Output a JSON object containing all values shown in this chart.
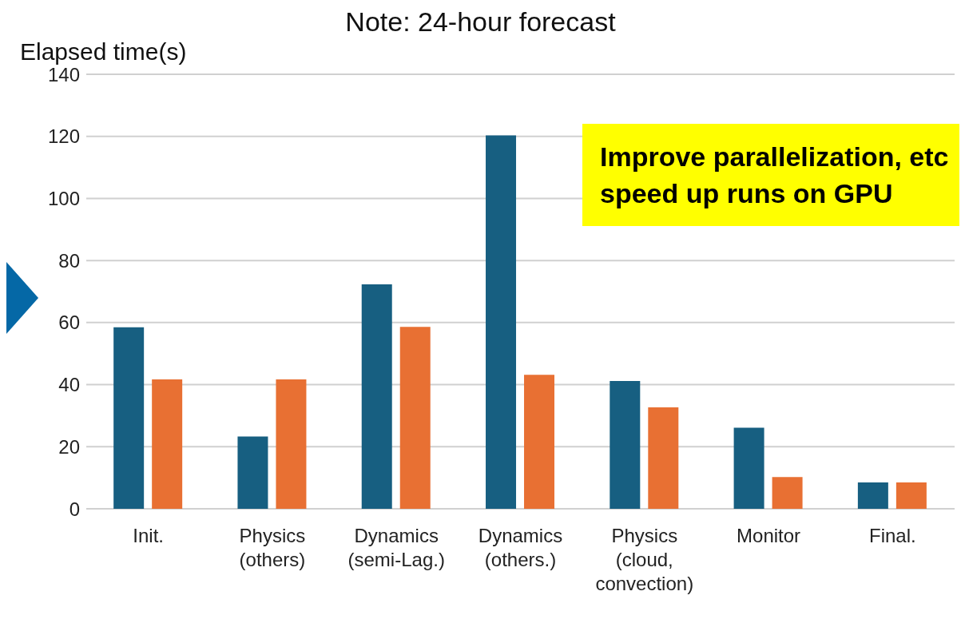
{
  "chart_data": {
    "type": "bar",
    "title": "Note: 24-hour forecast",
    "ylabel": "Elapsed time(s)",
    "categories": [
      "Init.",
      "Physics (others)",
      "Dynamics (semi-Lag.)",
      "Dynamics (others.)",
      "Physics (cloud, convection)",
      "Monitor",
      "Final."
    ],
    "series": [
      {
        "color": "#175f81",
        "values": [
          58.5,
          23.3,
          72.3,
          120.3,
          41.2,
          26.1,
          8.5
        ]
      },
      {
        "color": "#e87033",
        "values": [
          41.7,
          41.7,
          58.6,
          43.2,
          32.7,
          10.2,
          8.5
        ]
      }
    ],
    "ylim": [
      0,
      140
    ],
    "yticks": [
      0,
      20,
      40,
      60,
      80,
      100,
      120,
      140
    ],
    "grid": "y",
    "legend": false,
    "annotations": [
      "Improve parallelization, etc speed up runs on GPU"
    ]
  }
}
